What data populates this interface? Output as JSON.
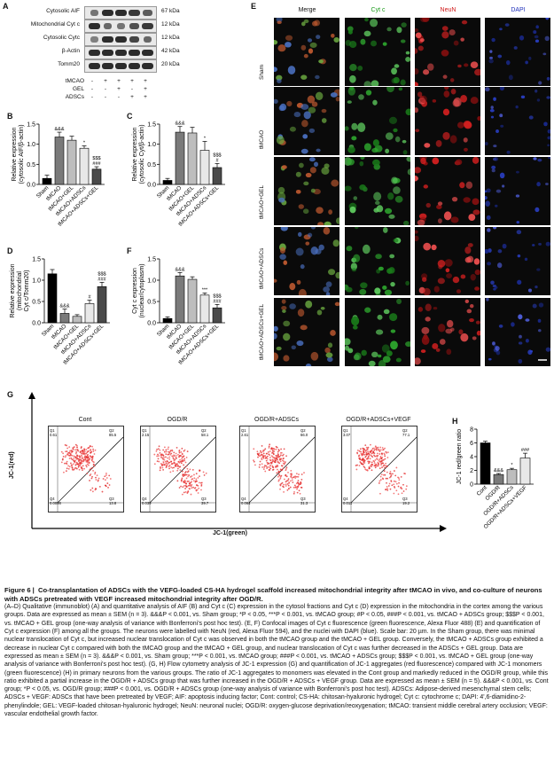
{
  "panel_letters": {
    "A": "A",
    "B": "B",
    "C": "C",
    "D": "D",
    "E": "E",
    "F": "F",
    "G": "G",
    "H": "H"
  },
  "blot": {
    "rows": [
      {
        "label": "Cytosolic AIF",
        "kda": "67 kDa"
      },
      {
        "label": "Mitochondrial Cyt c",
        "kda": "12 kDa"
      },
      {
        "label": "Cytosolic Cytc",
        "kda": "12 kDa"
      },
      {
        "label": "β-Actin",
        "kda": "42 kDa"
      },
      {
        "label": "Tomm20",
        "kda": "20 kDa"
      }
    ],
    "treatments": [
      {
        "label": "tMCAO",
        "signs": [
          "-",
          "+",
          "+",
          "+",
          "+"
        ]
      },
      {
        "label": "GEL",
        "signs": [
          "-",
          "-",
          "+",
          "-",
          "+"
        ]
      },
      {
        "label": "ADSCs",
        "signs": [
          "-",
          "-",
          "-",
          "+",
          "+"
        ]
      }
    ]
  },
  "bar_categories": [
    "Sham",
    "tMCAO",
    "tMCAO+GEL",
    "tMCAO+ADSCs",
    "tMCAO+ADSCs+GEL"
  ],
  "chart_data": [
    {
      "id": "B",
      "type": "bar",
      "ylabel": "Relative expression (cytosolic AIF/β-actin)",
      "ylim": [
        0,
        1.5
      ],
      "yticks": [
        "0.0",
        "0.5",
        "1.0",
        "1.5"
      ],
      "categories": [
        "Sham",
        "tMCAO",
        "tMCAO+GEL",
        "tMCAO+ADSCs",
        "tMCAO+ADSCs+GEL"
      ],
      "values": [
        0.15,
        1.18,
        1.1,
        0.9,
        0.38
      ],
      "errors": [
        0.08,
        0.12,
        0.1,
        0.06,
        0.06
      ],
      "annotations": [
        "",
        "&&&",
        "",
        "*",
        "$$$\n###"
      ]
    },
    {
      "id": "C",
      "type": "bar",
      "ylabel": "Relative expression (cytosolic Cyt/β-actin)",
      "ylim": [
        0,
        1.5
      ],
      "yticks": [
        "0.0",
        "0.5",
        "1.0",
        "1.5"
      ],
      "categories": [
        "Sham",
        "tMCAO",
        "tMCAO+GEL",
        "tMCAO+ADSCs",
        "tMCAO+ADSCs+GEL"
      ],
      "values": [
        0.1,
        1.3,
        1.28,
        0.85,
        0.42
      ],
      "errors": [
        0.05,
        0.14,
        0.14,
        0.22,
        0.1
      ],
      "annotations": [
        "",
        "&&&",
        "",
        "*",
        "$$$\n#"
      ]
    },
    {
      "id": "D",
      "type": "bar",
      "ylabel": "Relative expression (mitochondrial Cyt c/Tomm20)",
      "ylim": [
        0,
        1.5
      ],
      "yticks": [
        "0.0",
        "0.5",
        "1.0",
        "1.5"
      ],
      "categories": [
        "Sham",
        "tMCAO",
        "tMCAO+GEL",
        "tMCAO+ADSCs",
        "tMCAO+ADSCs+GEL"
      ],
      "values": [
        1.15,
        0.22,
        0.15,
        0.45,
        0.85
      ],
      "errors": [
        0.1,
        0.1,
        0.04,
        0.08,
        0.1
      ],
      "annotations": [
        "",
        "&&&",
        "",
        "#",
        "$$$\n###"
      ]
    },
    {
      "id": "F",
      "type": "bar",
      "ylabel": "Cyt c expression (nuclear/cytoplasm)",
      "ylim": [
        0,
        1.5
      ],
      "yticks": [
        "0.0",
        "0.5",
        "1.0",
        "1.5"
      ],
      "categories": [
        "Sham",
        "tMCAO",
        "tMCAO+GEL",
        "tMCAO+ADSCs",
        "tMCAO+ADSCs+GEL"
      ],
      "values": [
        0.1,
        1.1,
        1.02,
        0.65,
        0.35
      ],
      "errors": [
        0.04,
        0.08,
        0.06,
        0.05,
        0.08
      ],
      "annotations": [
        "",
        "&&&",
        "",
        "***",
        "$$$\n###"
      ]
    },
    {
      "id": "H",
      "type": "bar",
      "ylabel": "JC-1 red/green ratio",
      "ylim": [
        0,
        8
      ],
      "yticks": [
        "0",
        "2",
        "4",
        "6",
        "8"
      ],
      "categories": [
        "Cont",
        "OGD/R",
        "OGD/R+ADSCs",
        "OGD/R+ADSCs+VEGF"
      ],
      "values": [
        6.0,
        1.4,
        2.1,
        3.8
      ],
      "errors": [
        0.25,
        0.15,
        0.2,
        0.7
      ],
      "annotations": [
        "",
        "&&&",
        "*",
        "###"
      ]
    }
  ],
  "micro": {
    "columns": [
      {
        "label": "Merge",
        "color": "#111111"
      },
      {
        "label": "Cyt c",
        "color": "#1a9a1a"
      },
      {
        "label": "NeuN",
        "color": "#d01818"
      },
      {
        "label": "DAPI",
        "color": "#2233bb"
      }
    ],
    "rows": [
      "Sham",
      "tMCAO",
      "tMCAO+GEL",
      "tMCAO+ADSCs",
      "tMCAO+ADSCs+GEL"
    ]
  },
  "flow": {
    "y_label": "JC-1(red)",
    "x_label": "JC-1(green)",
    "plots": [
      {
        "title": "Cont",
        "q1": "Q1\n0.61",
        "q2": "Q2\n85.5",
        "q3": "Q3\n13.8",
        "q4": "Q4\n0.0098"
      },
      {
        "title": "OGD/R",
        "q1": "Q1\n2.15",
        "q2": "Q2\n58.1",
        "q3": "Q3\n39.7",
        "q4": "Q4\n0.039"
      },
      {
        "title": "OGD/R+ADSCs",
        "q1": "Q1\n2.61",
        "q2": "Q2\n66.0",
        "q3": "Q3\n31.3",
        "q4": "Q4\n0.064"
      },
      {
        "title": "OGD/R+ADSCs+VEGF",
        "q1": "Q1\n3.07",
        "q2": "Q2\n77.1",
        "q3": "Q3\n19.2",
        "q4": "Q4\n0.011"
      }
    ]
  },
  "caption": {
    "figure": "Figure 6",
    "title": "Co-transplantation of ADSCs with the VEFG-loaded CS-HA hydrogel scaffold increased mitochondrial integrity after tMCAO in vivo, and co-culture of neurons with ADSCs pretreated with VEGF increased mitochondrial integrity after OGD/R.",
    "body": "(A–D) Qualitative (immunoblot) (A) and quantitative analysis of AIF (B) and Cyt c (C) expression in the cytosol fractions and Cyt c (D) expression in the mitochondria in the cortex among the various groups. Data are expressed as mean ± SEM (n = 3). &&&P < 0.001, vs. Sham group; *P < 0.05, ***P < 0.001, vs. tMCAO group; #P < 0.05, ###P < 0.001, vs. tMCAO + ADSCs group; $$$P < 0.001, vs. tMCAO + GEL group (one-way analysis of variance with Bonferroni's post hoc test). (E, F) Confocal images of Cyt c fluorescence (green fluorescence, Alexa Fluor 488) (E) and quantification of Cyt c expression (F) among all the groups. The neurons were labelled with NeuN (red, Alexa Fluor 594), and the nuclei with DAPI (blue). Scale bar: 20 µm. In the Sham group, there was minimal nuclear translocation of Cyt c, but increased nuclear translocation of Cyt c was observed in both the tMCAO group and the tMCAO + GEL group. Conversely, the tMCAO + ADSCs group exhibited a decrease in nuclear Cyt c compared with both the tMCAO group and the tMCAO + GEL group, and nuclear translocation of Cyt c was further decreased in the ADSCs + GEL group. Data are expressed as mean ± SEM (n = 3). &&&P < 0.001, vs. Sham group; ***P < 0.001, vs. tMCAO group; ###P < 0.001, vs. tMCAO + ADSCs group; $$$P < 0.001, vs. tMCAO + GEL group (one-way analysis of variance with Bonferroni's post hoc test). (G, H) Flow cytometry analysis of JC-1 expression (G) and quantification of JC-1 aggregates (red fluorescence) compared with JC-1 monomers (green fluorescence) (H) in primary neurons from the various groups. The ratio of JC-1 aggregates to monomers was elevated in the Cont group and markedly reduced in the OGD/R group, while this ratio exhibited a partial increase in the OGD/R + ADSCs group that was further increased in the OGD/R + ADSCs + VEGF group. Data are expressed as mean ± SEM (n = 5). &&&P < 0.001, vs. Cont group; *P < 0.05, vs. OGD/R group; ###P < 0.001, vs. OGD/R + ADSCs group (one-way analysis of variance with Bonferroni's post hoc test). ADSCs: Adipose-derived mesenchymal stem cells; ADSCs + VEGF: ADSCs that have been pretreated by VEGF; AIF: apoptosis inducing factor; Cont: control; CS-HA: chitosan-hyaluronic hydrogel; Cyt c: cytochrome c; DAPI: 4',6-diamidino-2-phenylindole; GEL: VEGF-loaded chitosan-hyaluronic hydrogel; NeuN: neuronal nuclei; OGD/R: oxygen-glucose deprivation/reoxygenation; tMCAO: transient middle cerebral artery occlusion; VEGF: vascular endothelial growth factor."
  }
}
